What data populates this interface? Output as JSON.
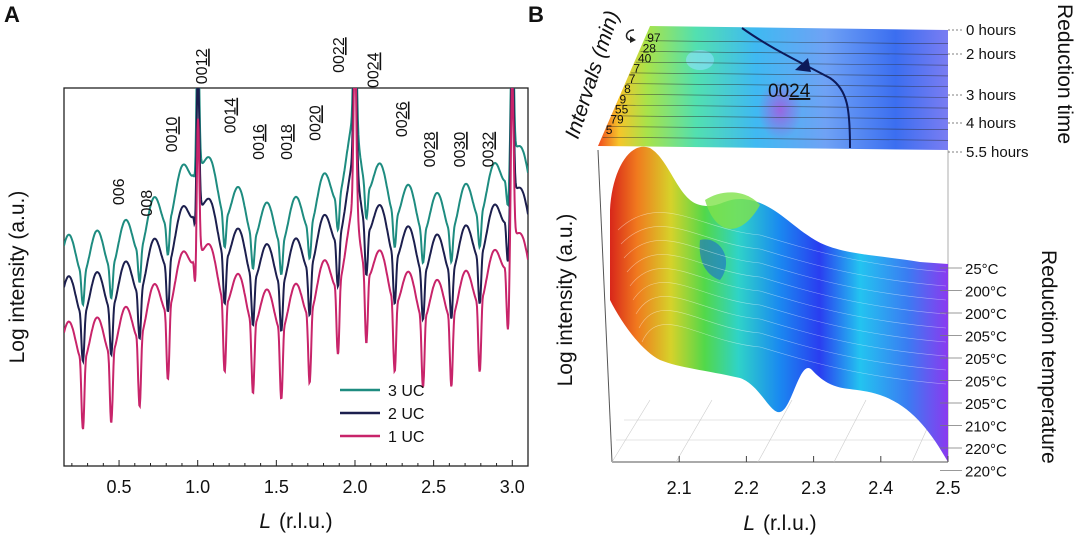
{
  "chart_data": [
    {
      "panel": "A",
      "type": "line",
      "xlabel_italic": "L",
      "xlabel_unit": "(r.l.u.)",
      "ylabel": "Log intensity (a.u.)",
      "xlim": [
        0.15,
        3.1
      ],
      "ylim": [
        0,
        10
      ],
      "xticks": [
        0.5,
        1.0,
        1.5,
        2.0,
        2.5,
        3.0
      ],
      "xtick_labels": [
        "0.5",
        "1.0",
        "1.5",
        "2.0",
        "2.5",
        "3.0"
      ],
      "peak_labels": [
        {
          "num": "006",
          "underlined": "",
          "L": 0.53,
          "level": 6.9
        },
        {
          "num": "008",
          "underlined": "",
          "L": 0.71,
          "level": 6.6
        },
        {
          "num": "00",
          "underlined": "10",
          "L": 0.87,
          "level": 8.3
        },
        {
          "num": "00",
          "underlined": "12",
          "L": 1.06,
          "level": 10.1
        },
        {
          "num": "00",
          "underlined": "14",
          "L": 1.24,
          "level": 8.8
        },
        {
          "num": "00",
          "underlined": "16",
          "L": 1.42,
          "level": 8.1
        },
        {
          "num": "00",
          "underlined": "18",
          "L": 1.6,
          "level": 8.1
        },
        {
          "num": "00",
          "underlined": "20",
          "L": 1.78,
          "level": 8.6
        },
        {
          "num": "00",
          "underlined": "22",
          "L": 1.93,
          "level": 10.4
        },
        {
          "num": "00",
          "underlined": "24",
          "L": 2.15,
          "level": 10.0
        },
        {
          "num": "00",
          "underlined": "26",
          "L": 2.33,
          "level": 8.7
        },
        {
          "num": "00",
          "underlined": "28",
          "L": 2.51,
          "level": 7.9
        },
        {
          "num": "00",
          "underlined": "30",
          "L": 2.7,
          "level": 7.9
        },
        {
          "num": "00",
          "underlined": "32",
          "L": 2.88,
          "level": 7.9
        }
      ],
      "series": [
        {
          "name": "3 UC",
          "color": "#1e8c80",
          "offset": 2.3
        },
        {
          "name": "2 UC",
          "color": "#1c1f4e",
          "offset": 1.2
        },
        {
          "name": "1 UC",
          "color": "#c8246a",
          "offset": 0.0
        }
      ],
      "legend": "lower-right"
    },
    {
      "panel": "B",
      "type": "surface",
      "xlabel_italic": "L",
      "xlabel_unit": "(r.l.u.)",
      "ylabel": "Log intensity (a.u.)",
      "xlim": [
        2.0,
        2.5
      ],
      "xticks": [
        2.1,
        2.2,
        2.3,
        2.4,
        2.5
      ],
      "xtick_labels": [
        "2.1",
        "2.2",
        "2.3",
        "2.4",
        "2.5"
      ],
      "top_map_peak_label_num": "00",
      "top_map_peak_label_underlined": "24",
      "intervals_label": "Intervals (min)",
      "intervals": [
        "97",
        "28",
        "40",
        "7",
        "7",
        "8",
        "9",
        "55",
        "79",
        "5"
      ],
      "reduction_time_label": "Reduction time",
      "reduction_times": [
        "0 hours",
        "2 hours",
        "3 hours",
        "4 hours",
        "5.5 hours"
      ],
      "reduction_temperature_label": "Reduction temperature",
      "reduction_temperatures": [
        "25°C",
        "200°C",
        "200°C",
        "205°C",
        "205°C",
        "205°C",
        "205°C",
        "210°C",
        "220°C",
        "220°C"
      ]
    }
  ]
}
